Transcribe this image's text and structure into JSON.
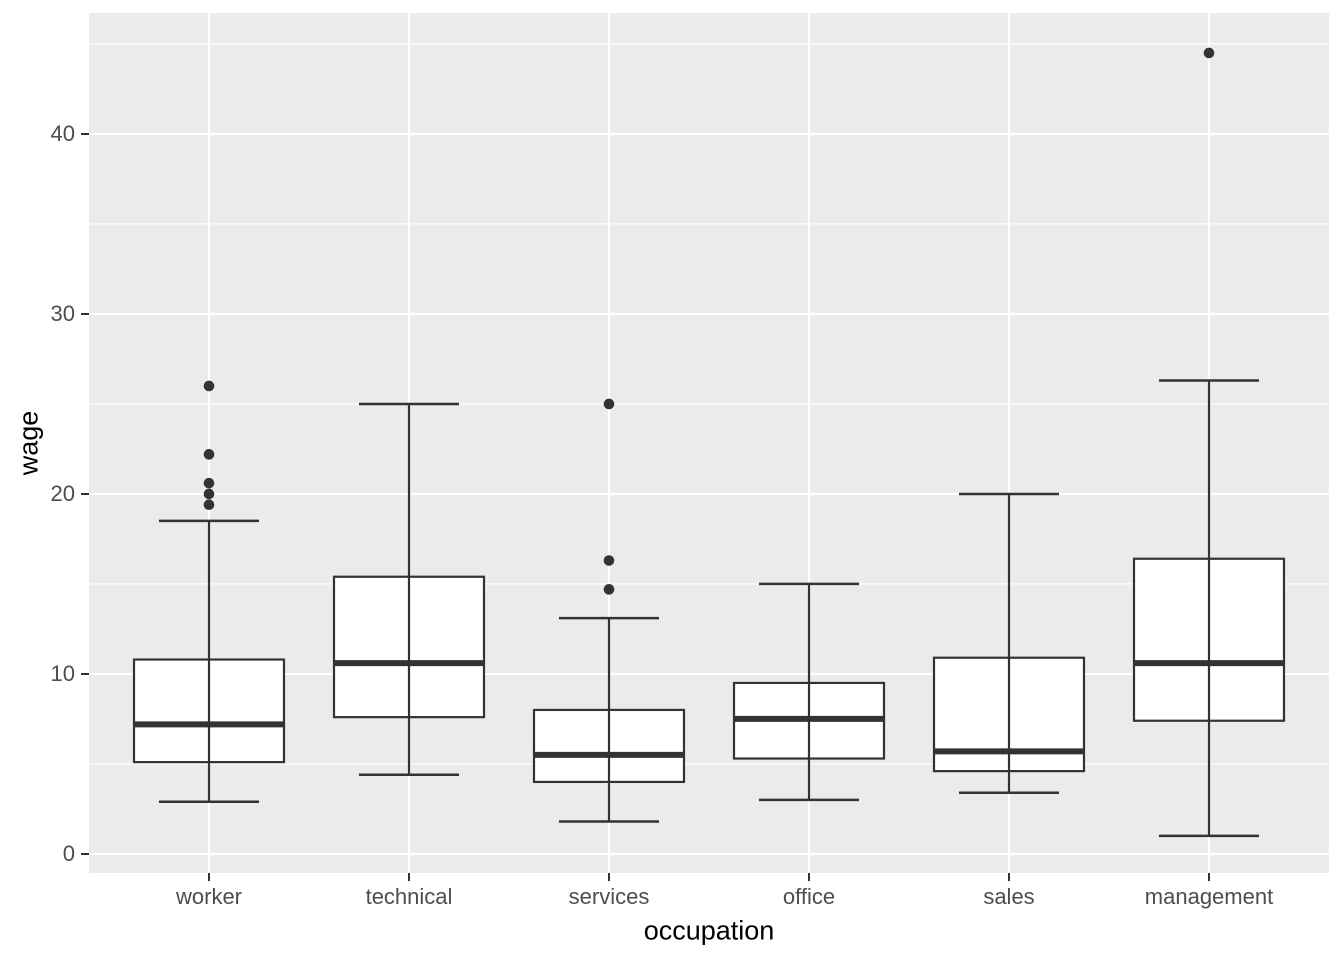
{
  "chart_data": {
    "type": "boxplot",
    "title": "",
    "xlabel": "occupation",
    "ylabel": "wage",
    "categories": [
      "worker",
      "technical",
      "services",
      "office",
      "sales",
      "management"
    ],
    "y_ticks": [
      0,
      10,
      20,
      30,
      40
    ],
    "y_minor_ticks": [
      5,
      15,
      25,
      35,
      45
    ],
    "ylim": [
      -1.06,
      46.72
    ],
    "grid": "white major and minor gridlines on gray panel",
    "legend": false,
    "series": [
      {
        "category": "worker",
        "whisker_low": 2.9,
        "q1": 5.1,
        "median": 7.2,
        "q3": 10.8,
        "whisker_high": 18.5,
        "outliers": [
          19.4,
          20.0,
          20.6,
          22.2,
          26.0
        ]
      },
      {
        "category": "technical",
        "whisker_low": 4.4,
        "q1": 7.6,
        "median": 10.6,
        "q3": 15.4,
        "whisker_high": 25.0,
        "outliers": []
      },
      {
        "category": "services",
        "whisker_low": 1.8,
        "q1": 4.0,
        "median": 5.5,
        "q3": 8.0,
        "whisker_high": 13.1,
        "outliers": [
          14.7,
          16.3,
          25.0
        ]
      },
      {
        "category": "office",
        "whisker_low": 3.0,
        "q1": 5.3,
        "median": 7.5,
        "q3": 9.5,
        "whisker_high": 15.0,
        "outliers": []
      },
      {
        "category": "sales",
        "whisker_low": 3.4,
        "q1": 4.6,
        "median": 5.7,
        "q3": 10.9,
        "whisker_high": 20.0,
        "outliers": []
      },
      {
        "category": "management",
        "whisker_low": 1.0,
        "q1": 7.4,
        "median": 10.6,
        "q3": 16.4,
        "whisker_high": 26.3,
        "outliers": [
          44.5
        ]
      }
    ],
    "colors": {
      "figure_background": "#FFFFFF",
      "panel_background": "#EBEBEB",
      "grid": "#FFFFFF",
      "box_fill": "#FFFFFF",
      "box_stroke": "#333333",
      "outlier": "#333333",
      "tick_mark": "#333333",
      "tick_label": "#4D4D4D",
      "axis_title": "#000000"
    }
  }
}
